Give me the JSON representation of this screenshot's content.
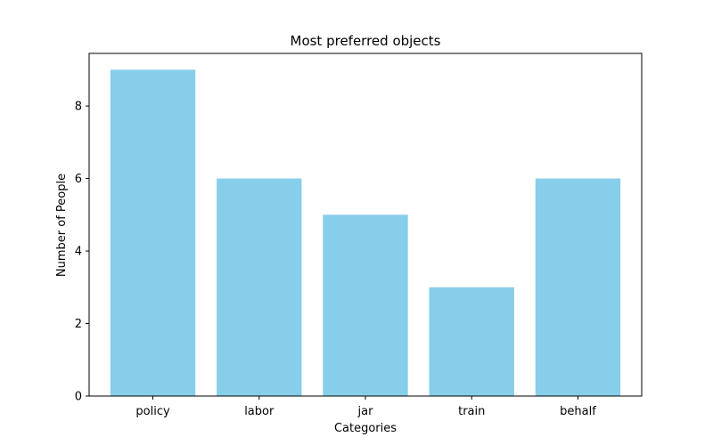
{
  "chart_data": {
    "type": "bar",
    "title": "Most preferred objects",
    "xlabel": "Categories",
    "ylabel": "Number of People",
    "categories": [
      "policy",
      "labor",
      "jar",
      "train",
      "behalf"
    ],
    "values": [
      9,
      6,
      5,
      3,
      6
    ],
    "ylim": [
      0,
      9.45
    ],
    "yticks": [
      0,
      2,
      4,
      6,
      8
    ],
    "bar_color": "#87ceeb",
    "grid": false,
    "legend": "none"
  }
}
